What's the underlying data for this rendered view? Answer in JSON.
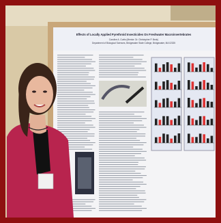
{
  "poster": {
    "title": "Effects of Locally Applied Pyrethroid Insecticides On Freshwater Macroinvertebrates",
    "authors": "Caroline A. Curtis (Mentor: Dr. Christopher P. Beck)",
    "affiliation": "Department of Biological Sciences, Bridgewater State College, Bridgewater, MA 02325"
  }
}
